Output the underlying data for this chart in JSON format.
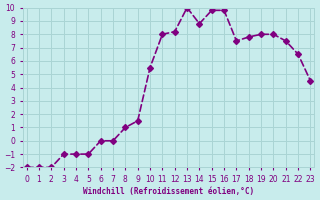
{
  "x": [
    0,
    1,
    2,
    3,
    4,
    5,
    6,
    7,
    8,
    9,
    10,
    11,
    12,
    13,
    14,
    15,
    16,
    17,
    18,
    19,
    20,
    21,
    22,
    23
  ],
  "y": [
    -2,
    -2,
    -2,
    -1,
    -1,
    -1,
    0,
    0,
    1,
    1.5,
    5.5,
    8,
    8.2,
    10,
    8.8,
    9.8,
    9.8,
    7.5,
    7.8,
    8,
    8,
    7.5,
    6.5,
    4.5
  ],
  "line_color": "#800080",
  "marker_color": "#800080",
  "bg_color": "#c8ecec",
  "grid_color": "#aad4d4",
  "xlabel": "Windchill (Refroidissement éolien,°C)",
  "ylim": [
    -2,
    10
  ],
  "xlim": [
    0,
    23
  ],
  "yticks": [
    -2,
    -1,
    0,
    1,
    2,
    3,
    4,
    5,
    6,
    7,
    8,
    9,
    10
  ],
  "xticks": [
    0,
    1,
    2,
    3,
    4,
    5,
    6,
    7,
    8,
    9,
    10,
    11,
    12,
    13,
    14,
    15,
    16,
    17,
    18,
    19,
    20,
    21,
    22,
    23
  ],
  "title_color": "#800080",
  "xlabel_color": "#800080",
  "tick_color": "#800080",
  "line_width": 1.2,
  "marker_size": 3
}
